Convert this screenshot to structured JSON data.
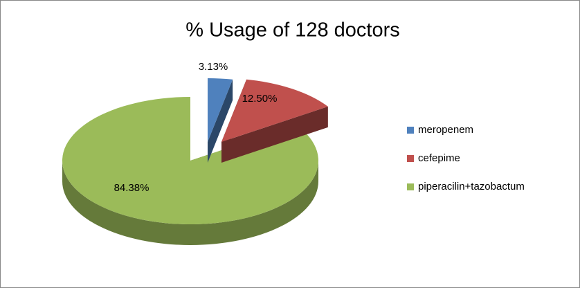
{
  "chart_data": {
    "type": "pie",
    "title": "% Usage of 128 doctors",
    "categories": [
      "meropenem",
      "cefepime",
      "piperacilin+tazobactum"
    ],
    "values": [
      3.13,
      12.5,
      84.38
    ],
    "value_labels": [
      "3.13%",
      "12.50%",
      "84.38%"
    ],
    "colors": [
      "#4f81bd",
      "#c0504d",
      "#9bbb59"
    ],
    "legend": "right"
  }
}
